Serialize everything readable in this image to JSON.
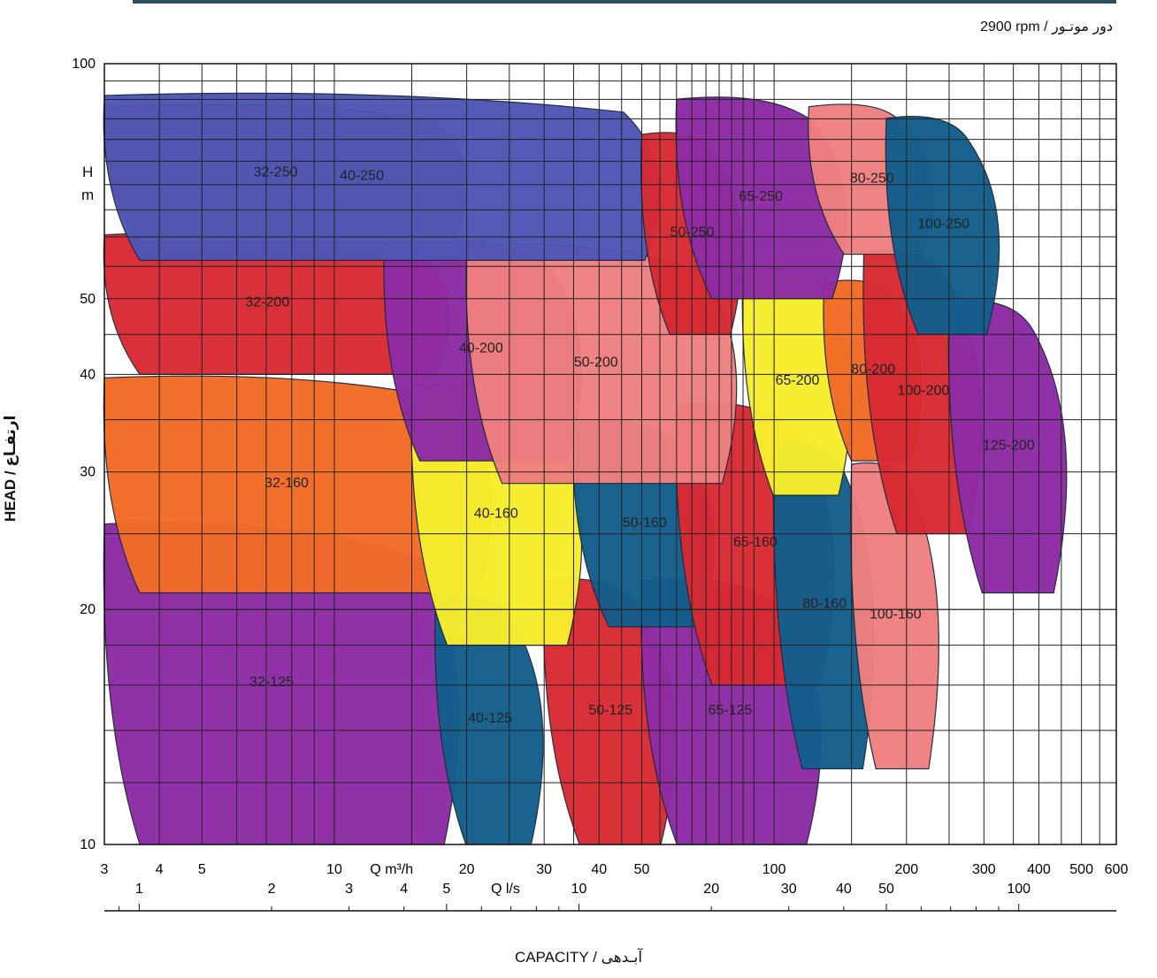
{
  "header": {
    "rpm_label": "2900 rpm / دور موتـور"
  },
  "axes": {
    "y_unit_top": "H",
    "y_unit_bottom": "m",
    "y_title": "HEAD / ارتفـاع",
    "x_title": "CAPACITY / آبـدهی",
    "x_unit_m3h": "Q m³/h",
    "x_unit_ls": "Q l/s"
  },
  "chart_data": {
    "type": "area",
    "scale": "log-log",
    "y_ticks": [
      10,
      20,
      30,
      40,
      50,
      100
    ],
    "ylim": [
      10,
      100
    ],
    "x_ticks_m3h": [
      3,
      4,
      5,
      10,
      20,
      30,
      40,
      50,
      100,
      200,
      300,
      400,
      500,
      600
    ],
    "x_ticks_ls": [
      1,
      2,
      3,
      4,
      5,
      10,
      20,
      30,
      40,
      50,
      100
    ],
    "xlim_m3h": [
      3,
      600
    ],
    "zones": [
      {
        "label": "32-125",
        "color": "#8e2ba5",
        "flow_m3h": [
          3,
          21
        ],
        "head_m": [
          10,
          26
        ]
      },
      {
        "label": "40-125",
        "color": "#135e8c",
        "flow_m3h": [
          17,
          32
        ],
        "head_m": [
          10,
          21
        ]
      },
      {
        "label": "50-125",
        "color": "#d82a33",
        "flow_m3h": [
          30,
          65
        ],
        "head_m": [
          10,
          22
        ]
      },
      {
        "label": "65-125",
        "color": "#8e2ba5",
        "flow_m3h": [
          50,
          140
        ],
        "head_m": [
          10,
          22
        ]
      },
      {
        "label": "32-160",
        "color": "#f26b26",
        "flow_m3h": [
          3,
          25
        ],
        "head_m": [
          21,
          40
        ]
      },
      {
        "label": "40-160",
        "color": "#f7ee2c",
        "flow_m3h": [
          15,
          40
        ],
        "head_m": [
          18,
          39
        ]
      },
      {
        "label": "50-160",
        "color": "#135e8c",
        "flow_m3h": [
          35,
          80
        ],
        "head_m": [
          19,
          35
        ]
      },
      {
        "label": "65-160",
        "color": "#d82a33",
        "flow_m3h": [
          60,
          150
        ],
        "head_m": [
          16,
          37
        ]
      },
      {
        "label": "80-160",
        "color": "#135e8c",
        "flow_m3h": [
          100,
          180
        ],
        "head_m": [
          12.5,
          33
        ]
      },
      {
        "label": "100-160",
        "color": "#f07f7f",
        "flow_m3h": [
          150,
          250
        ],
        "head_m": [
          12.5,
          31
        ]
      },
      {
        "label": "32-200",
        "color": "#d82a33",
        "flow_m3h": [
          3,
          20
        ],
        "head_m": [
          40,
          61
        ]
      },
      {
        "label": "40-200",
        "color": "#8e2ba5",
        "flow_m3h": [
          13,
          40
        ],
        "head_m": [
          31,
          60
        ]
      },
      {
        "label": "50-200",
        "color": "#f07f7f",
        "flow_m3h": [
          20,
          90
        ],
        "head_m": [
          29,
          59
        ]
      },
      {
        "label": "65-200",
        "color": "#f7ee2c",
        "flow_m3h": [
          85,
          160
        ],
        "head_m": [
          28,
          55
        ]
      },
      {
        "label": "80-200",
        "color": "#f26b26",
        "flow_m3h": [
          130,
          230
        ],
        "head_m": [
          31,
          53
        ]
      },
      {
        "label": "100-200",
        "color": "#d82a33",
        "flow_m3h": [
          160,
          320
        ],
        "head_m": [
          25,
          58
        ]
      },
      {
        "label": "125-200",
        "color": "#8e2ba5",
        "flow_m3h": [
          250,
          500
        ],
        "head_m": [
          21,
          50
        ]
      },
      {
        "label": "32-250",
        "color": "#c8622b",
        "flow_m3h": [
          3,
          22
        ],
        "head_m": [
          59,
          89
        ]
      },
      {
        "label": "40-250",
        "color": "#4f56b5",
        "flow_m3h": [
          3,
          60
        ],
        "head_m": [
          56,
          92
        ]
      },
      {
        "label": "50-250",
        "color": "#d82a33",
        "flow_m3h": [
          50,
          90
        ],
        "head_m": [
          45,
          82
        ]
      },
      {
        "label": "65-250",
        "color": "#8e2ba5",
        "flow_m3h": [
          60,
          160
        ],
        "head_m": [
          50,
          91
        ]
      },
      {
        "label": "80-250",
        "color": "#f07f7f",
        "flow_m3h": [
          120,
          250
        ],
        "head_m": [
          57,
          89
        ]
      },
      {
        "label": "100-250",
        "color": "#135e8c",
        "flow_m3h": [
          180,
          350
        ],
        "head_m": [
          45,
          86
        ]
      }
    ]
  }
}
